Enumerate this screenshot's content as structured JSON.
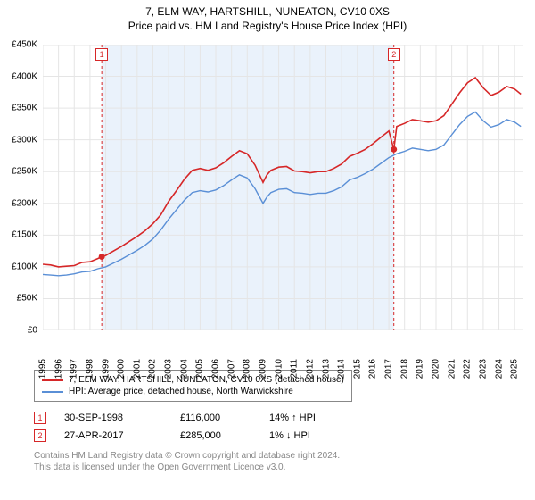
{
  "title": "7, ELM WAY, HARTSHILL, NUNEATON, CV10 0XS",
  "subtitle": "Price paid vs. HM Land Registry's House Price Index (HPI)",
  "chart": {
    "type": "line",
    "background_color": "#ffffff",
    "gridline_color": "#e5e5e5",
    "highlight_band_color": "#eaf2fb",
    "highlight_band": {
      "x_start": 1998.75,
      "x_end": 2017.32
    },
    "xlim": [
      1995,
      2025.5
    ],
    "ylim": [
      0,
      450000
    ],
    "ytick_step": 50000,
    "y_prefix": "£",
    "y_suffix": "K",
    "y_divisor": 1000,
    "xticks": [
      1995,
      1996,
      1997,
      1998,
      1999,
      2000,
      2001,
      2002,
      2003,
      2004,
      2005,
      2006,
      2007,
      2008,
      2009,
      2010,
      2011,
      2012,
      2013,
      2014,
      2015,
      2016,
      2017,
      2018,
      2019,
      2020,
      2021,
      2022,
      2023,
      2024,
      2025
    ],
    "series": [
      {
        "name": "7, ELM WAY, HARTSHILL, NUNEATON, CV10 0XS (detached house)",
        "color": "#d62728",
        "line_width": 1.6,
        "data": [
          [
            1995,
            104000
          ],
          [
            1995.5,
            103000
          ],
          [
            1996,
            100000
          ],
          [
            1996.5,
            101000
          ],
          [
            1997,
            102000
          ],
          [
            1997.5,
            107000
          ],
          [
            1998,
            108000
          ],
          [
            1998.5,
            113000
          ],
          [
            1998.75,
            116000
          ],
          [
            1999,
            118000
          ],
          [
            1999.5,
            125000
          ],
          [
            2000,
            132000
          ],
          [
            2000.5,
            140000
          ],
          [
            2001,
            148000
          ],
          [
            2001.5,
            157000
          ],
          [
            2002,
            168000
          ],
          [
            2002.5,
            182000
          ],
          [
            2003,
            203000
          ],
          [
            2003.5,
            220000
          ],
          [
            2004,
            238000
          ],
          [
            2004.5,
            252000
          ],
          [
            2005,
            255000
          ],
          [
            2005.5,
            252000
          ],
          [
            2006,
            256000
          ],
          [
            2006.5,
            264000
          ],
          [
            2007,
            274000
          ],
          [
            2007.5,
            283000
          ],
          [
            2008,
            278000
          ],
          [
            2008.5,
            260000
          ],
          [
            2009,
            233000
          ],
          [
            2009.25,
            245000
          ],
          [
            2009.5,
            252000
          ],
          [
            2010,
            257000
          ],
          [
            2010.5,
            258000
          ],
          [
            2011,
            251000
          ],
          [
            2011.5,
            250000
          ],
          [
            2012,
            248000
          ],
          [
            2012.5,
            250000
          ],
          [
            2013,
            250000
          ],
          [
            2013.5,
            255000
          ],
          [
            2014,
            262000
          ],
          [
            2014.5,
            274000
          ],
          [
            2015,
            279000
          ],
          [
            2015.5,
            285000
          ],
          [
            2016,
            294000
          ],
          [
            2016.5,
            304000
          ],
          [
            2017,
            314000
          ],
          [
            2017.32,
            285000
          ],
          [
            2017.5,
            321000
          ],
          [
            2018,
            326000
          ],
          [
            2018.5,
            332000
          ],
          [
            2019,
            330000
          ],
          [
            2019.5,
            328000
          ],
          [
            2020,
            330000
          ],
          [
            2020.5,
            338000
          ],
          [
            2021,
            356000
          ],
          [
            2021.5,
            374000
          ],
          [
            2022,
            390000
          ],
          [
            2022.5,
            398000
          ],
          [
            2023,
            382000
          ],
          [
            2023.5,
            370000
          ],
          [
            2024,
            375000
          ],
          [
            2024.5,
            384000
          ],
          [
            2025,
            380000
          ],
          [
            2025.4,
            372000
          ]
        ]
      },
      {
        "name": "HPI: Average price, detached house, North Warwickshire",
        "color": "#5a8fd6",
        "line_width": 1.4,
        "data": [
          [
            1995,
            88000
          ],
          [
            1995.5,
            87000
          ],
          [
            1996,
            86000
          ],
          [
            1996.5,
            87000
          ],
          [
            1997,
            89000
          ],
          [
            1997.5,
            92000
          ],
          [
            1998,
            93000
          ],
          [
            1998.5,
            97000
          ],
          [
            1999,
            100000
          ],
          [
            1999.5,
            106000
          ],
          [
            2000,
            112000
          ],
          [
            2000.5,
            119000
          ],
          [
            2001,
            126000
          ],
          [
            2001.5,
            134000
          ],
          [
            2002,
            144000
          ],
          [
            2002.5,
            158000
          ],
          [
            2003,
            175000
          ],
          [
            2003.5,
            190000
          ],
          [
            2004,
            205000
          ],
          [
            2004.5,
            217000
          ],
          [
            2005,
            220000
          ],
          [
            2005.5,
            218000
          ],
          [
            2006,
            221000
          ],
          [
            2006.5,
            228000
          ],
          [
            2007,
            237000
          ],
          [
            2007.5,
            245000
          ],
          [
            2008,
            240000
          ],
          [
            2008.5,
            223000
          ],
          [
            2009,
            200000
          ],
          [
            2009.25,
            210000
          ],
          [
            2009.5,
            217000
          ],
          [
            2010,
            222000
          ],
          [
            2010.5,
            223000
          ],
          [
            2011,
            217000
          ],
          [
            2011.5,
            216000
          ],
          [
            2012,
            214000
          ],
          [
            2012.5,
            216000
          ],
          [
            2013,
            216000
          ],
          [
            2013.5,
            220000
          ],
          [
            2014,
            226000
          ],
          [
            2014.5,
            237000
          ],
          [
            2015,
            241000
          ],
          [
            2015.5,
            247000
          ],
          [
            2016,
            254000
          ],
          [
            2016.5,
            263000
          ],
          [
            2017,
            272000
          ],
          [
            2017.5,
            278000
          ],
          [
            2018,
            282000
          ],
          [
            2018.5,
            287000
          ],
          [
            2019,
            285000
          ],
          [
            2019.5,
            283000
          ],
          [
            2020,
            285000
          ],
          [
            2020.5,
            292000
          ],
          [
            2021,
            308000
          ],
          [
            2021.5,
            324000
          ],
          [
            2022,
            337000
          ],
          [
            2022.5,
            344000
          ],
          [
            2023,
            330000
          ],
          [
            2023.5,
            320000
          ],
          [
            2024,
            324000
          ],
          [
            2024.5,
            332000
          ],
          [
            2025,
            328000
          ],
          [
            2025.4,
            321000
          ]
        ]
      }
    ],
    "markers": [
      {
        "label": "1",
        "x": 1998.75,
        "y": 116000,
        "point_color": "#d62728"
      },
      {
        "label": "2",
        "x": 2017.32,
        "y": 285000,
        "point_color": "#d62728"
      }
    ],
    "marker_boxes_top": [
      {
        "label": "1",
        "x": 1998.75
      },
      {
        "label": "2",
        "x": 2017.32
      }
    ],
    "vlines": [
      {
        "x": 1998.75,
        "color": "#d62728",
        "dash": "3,3"
      },
      {
        "x": 2017.32,
        "color": "#d62728",
        "dash": "3,3"
      }
    ]
  },
  "legend": {
    "rows": [
      {
        "color": "#d62728",
        "label": "7, ELM WAY, HARTSHILL, NUNEATON, CV10 0XS (detached house)"
      },
      {
        "color": "#5a8fd6",
        "label": "HPI: Average price, detached house, North Warwickshire"
      }
    ]
  },
  "sales_table": {
    "rows": [
      {
        "marker": "1",
        "date": "30-SEP-1998",
        "price": "£116,000",
        "delta": "14% ↑ HPI"
      },
      {
        "marker": "2",
        "date": "27-APR-2017",
        "price": "£285,000",
        "delta": "1% ↓ HPI"
      }
    ]
  },
  "footnote": {
    "line1": "Contains HM Land Registry data © Crown copyright and database right 2024.",
    "line2": "This data is licensed under the Open Government Licence v3.0."
  }
}
